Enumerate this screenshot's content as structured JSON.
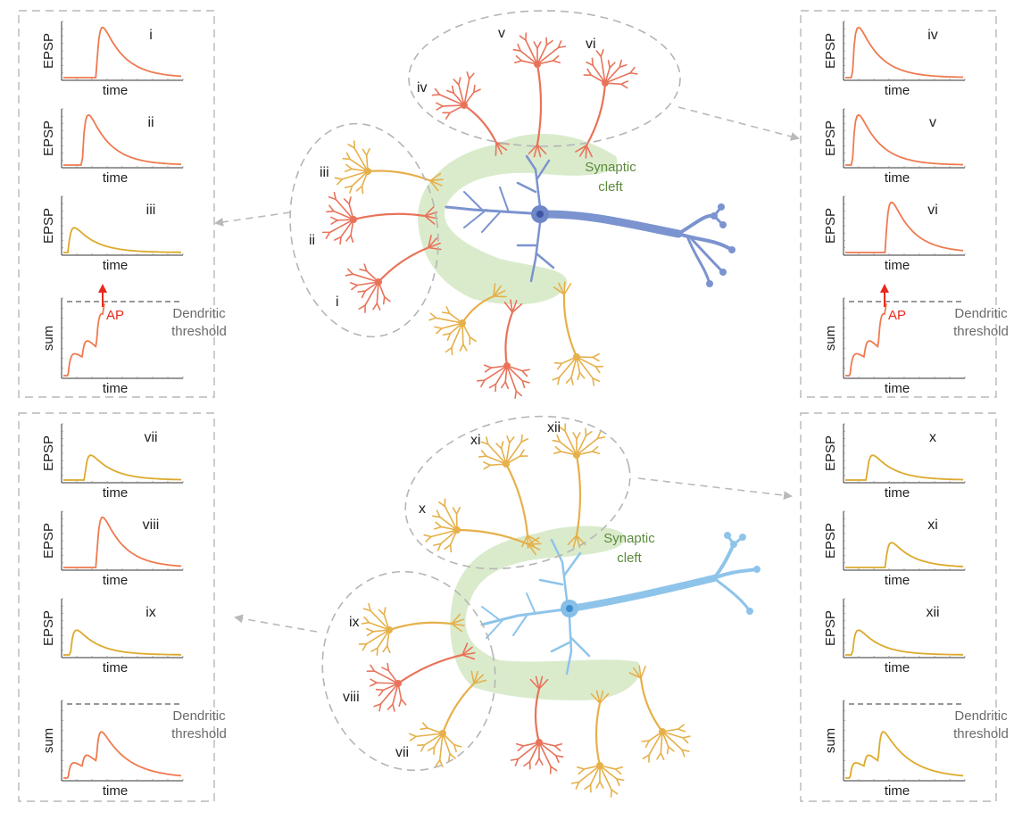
{
  "labels": {
    "y_epsp": "EPSP",
    "y_sum": "sum",
    "x_time": "time",
    "synaptic_line1": "Synaptic",
    "synaptic_line2": "cleft",
    "ap": "AP",
    "threshold_line1": "Dendritic",
    "threshold_line2": "threshold"
  },
  "colors": {
    "red_dendrite": "#e8735a",
    "yellow_dendrite": "#e6b04a",
    "orange_trace": "#ef7a4f",
    "yellow_trace": "#dcaa2c",
    "blue_neuron": "#7b93cf",
    "light_blue_neuron": "#8fc4ea",
    "cleft_green": "#d3e8c3",
    "ap_arrow": "#e8281e",
    "frame_gray": "#b8b8b8"
  },
  "panels": [
    {
      "id": "top-left",
      "plots": [
        {
          "roman": "i",
          "type": "epsp",
          "onset": 0.28,
          "amplitude": 0.85,
          "color": "orange"
        },
        {
          "roman": "ii",
          "type": "epsp",
          "onset": 0.16,
          "amplitude": 0.85,
          "color": "orange"
        },
        {
          "roman": "iii",
          "type": "epsp",
          "onset": 0.04,
          "amplitude": 0.42,
          "color": "yellow"
        },
        {
          "roman": "",
          "type": "sum",
          "crosses_threshold": true
        }
      ]
    },
    {
      "id": "top-right",
      "plots": [
        {
          "roman": "iv",
          "type": "epsp",
          "onset": 0.06,
          "amplitude": 0.85,
          "color": "orange"
        },
        {
          "roman": "v",
          "type": "epsp",
          "onset": 0.06,
          "amplitude": 0.85,
          "color": "orange"
        },
        {
          "roman": "vi",
          "type": "epsp",
          "onset": 0.34,
          "amplitude": 0.85,
          "color": "orange"
        },
        {
          "roman": "",
          "type": "sum",
          "crosses_threshold": true
        }
      ]
    },
    {
      "id": "bottom-left",
      "plots": [
        {
          "roman": "vii",
          "type": "epsp",
          "onset": 0.18,
          "amplitude": 0.42,
          "color": "yellow"
        },
        {
          "roman": "viii",
          "type": "epsp",
          "onset": 0.28,
          "amplitude": 0.85,
          "color": "orange"
        },
        {
          "roman": "ix",
          "type": "epsp",
          "onset": 0.06,
          "amplitude": 0.42,
          "color": "yellow"
        },
        {
          "roman": "",
          "type": "sum",
          "crosses_threshold": false
        }
      ]
    },
    {
      "id": "bottom-right",
      "plots": [
        {
          "roman": "x",
          "type": "epsp",
          "onset": 0.18,
          "amplitude": 0.42,
          "color": "yellow"
        },
        {
          "roman": "xi",
          "type": "epsp",
          "onset": 0.34,
          "amplitude": 0.42,
          "color": "yellow"
        },
        {
          "roman": "xii",
          "type": "epsp",
          "onset": 0.06,
          "amplitude": 0.42,
          "color": "yellow"
        },
        {
          "roman": "",
          "type": "sum",
          "crosses_threshold": false
        }
      ]
    }
  ],
  "neuron_labels": {
    "top": [
      "i",
      "ii",
      "iii",
      "iv",
      "v",
      "vi"
    ],
    "bottom": [
      "vii",
      "viii",
      "ix",
      "x",
      "xi",
      "xii"
    ]
  }
}
